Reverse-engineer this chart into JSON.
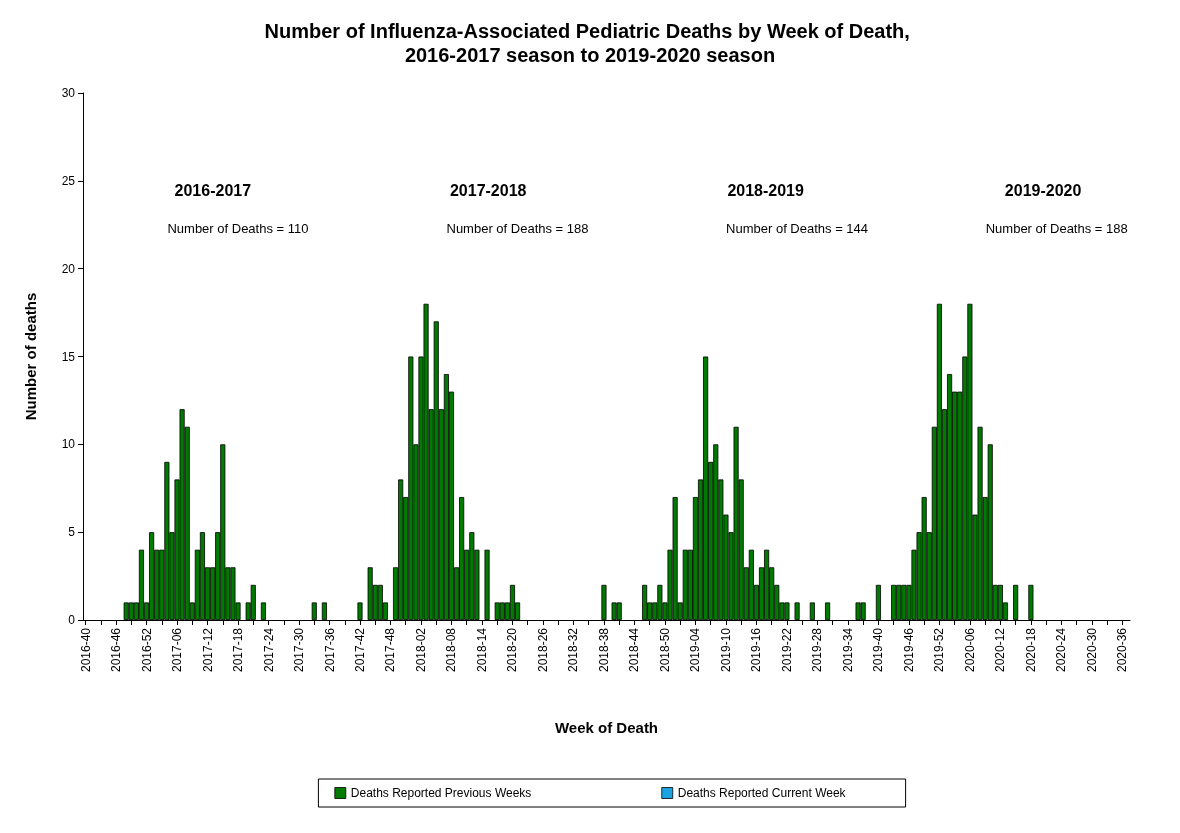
{
  "chart_data": {
    "type": "bar",
    "title": "Number of Influenza-Associated Pediatric Deaths by Week of Death, 2016-2017 season to 2019-2020 season",
    "xlabel": "Week of Death",
    "ylabel": "Number of deaths",
    "categories": [
      "2016-40",
      null,
      null,
      null,
      null,
      null,
      "2016-46",
      null,
      null,
      null,
      null,
      null,
      "2016-52",
      null,
      null,
      null,
      null,
      null,
      "2017-06",
      null,
      null,
      null,
      null,
      null,
      "2017-12",
      null,
      null,
      null,
      null,
      null,
      "2017-18",
      null,
      null,
      null,
      null,
      null,
      "2017-24",
      null,
      null,
      null,
      null,
      null,
      "2017-30",
      null,
      null,
      null,
      null,
      null,
      "2017-36",
      null,
      null,
      null,
      null,
      null,
      "2017-42",
      null,
      null,
      null,
      null,
      null,
      "2017-48",
      null,
      null,
      null,
      null,
      null,
      "2018-02",
      null,
      null,
      null,
      null,
      null,
      "2018-08",
      null,
      null,
      null,
      null,
      null,
      "2018-14",
      null,
      null,
      null,
      null,
      null,
      "2018-20",
      null,
      null,
      null,
      null,
      null,
      "2018-26",
      null,
      null,
      null,
      null,
      null,
      "2018-32",
      null,
      null,
      null,
      null,
      null,
      "2018-38",
      null,
      null,
      null,
      null,
      null,
      "2018-44",
      null,
      null,
      null,
      null,
      null,
      "2018-50",
      null,
      null,
      null,
      null,
      null,
      "2019-04",
      null,
      null,
      null,
      null,
      null,
      "2019-10",
      null,
      null,
      null,
      null,
      null,
      "2019-16",
      null,
      null,
      null,
      null,
      null,
      "2019-22",
      null,
      null,
      null,
      null,
      null,
      "2019-28",
      null,
      null,
      null,
      null,
      null,
      "2019-34",
      null,
      null,
      null,
      null,
      null,
      "2019-40",
      null,
      null,
      null,
      null,
      null,
      "2019-46",
      null,
      null,
      null,
      null,
      null,
      "2019-52",
      null,
      null,
      null,
      null,
      null,
      "2020-06",
      null,
      null,
      null,
      null,
      null,
      "2020-12",
      null,
      null,
      null,
      null,
      null,
      "2020-18",
      null,
      null,
      null,
      null,
      null,
      "2020-24",
      null,
      null,
      null,
      null,
      null,
      "2020-30",
      null,
      null,
      null,
      null,
      null,
      "2020-36",
      null
    ],
    "series": [
      {
        "name": "Deaths Reported Previous Weeks",
        "color": "#007a00",
        "values": [
          0,
          0,
          0,
          0,
          0,
          0,
          0,
          0,
          1,
          1,
          1,
          4,
          1,
          5,
          4,
          4,
          9,
          5,
          8,
          12,
          11,
          1,
          4,
          5,
          3,
          3,
          5,
          10,
          3,
          3,
          1,
          0,
          1,
          2,
          0,
          1,
          0,
          0,
          0,
          0,
          0,
          0,
          0,
          0,
          0,
          1,
          0,
          1,
          0,
          0,
          0,
          0,
          0,
          0,
          1,
          0,
          3,
          2,
          2,
          1,
          0,
          3,
          8,
          7,
          15,
          10,
          15,
          18,
          12,
          17,
          12,
          14,
          13,
          3,
          7,
          4,
          5,
          4,
          0,
          4,
          0,
          1,
          1,
          1,
          2,
          1,
          0,
          0,
          0,
          0,
          0,
          0,
          0,
          0,
          0,
          0,
          0,
          0,
          0,
          0,
          0,
          0,
          2,
          0,
          1,
          1,
          0,
          0,
          0,
          0,
          2,
          1,
          1,
          2,
          1,
          4,
          7,
          1,
          4,
          4,
          7,
          8,
          15,
          9,
          10,
          8,
          6,
          5,
          11,
          8,
          3,
          4,
          2,
          3,
          4,
          3,
          2,
          1,
          1,
          0,
          1,
          0,
          0,
          1,
          0,
          0,
          1,
          0,
          0,
          0,
          0,
          0,
          1,
          1,
          0,
          0,
          2,
          0,
          0,
          2,
          2,
          2,
          2,
          4,
          5,
          7,
          5,
          11,
          18,
          12,
          14,
          13,
          13,
          15,
          18,
          6,
          11,
          7,
          10,
          2,
          2,
          1,
          0,
          2,
          0,
          0,
          2,
          0,
          0,
          0,
          0,
          0,
          0,
          0,
          0,
          0,
          0,
          0,
          0,
          0,
          0,
          0,
          0,
          0,
          0,
          0
        ]
      },
      {
        "name": "Deaths Reported Current Week",
        "color": "#1aa3e0",
        "values": [
          0,
          0,
          0,
          0,
          0,
          0,
          0,
          0,
          0,
          0,
          0,
          0,
          0,
          0,
          0,
          0,
          0,
          0,
          0,
          0,
          0,
          0,
          0,
          0,
          0,
          0,
          0,
          0,
          0,
          0,
          0,
          0,
          0,
          0,
          0,
          0,
          0,
          0,
          0,
          0,
          0,
          0,
          0,
          0,
          0,
          0,
          0,
          0,
          0,
          0,
          0,
          0,
          0,
          0,
          0,
          0,
          0,
          0,
          0,
          0,
          0,
          0,
          0,
          0,
          0,
          0,
          0,
          0,
          0,
          0,
          0,
          0,
          0,
          0,
          0,
          0,
          0,
          0,
          0,
          0,
          0,
          0,
          0,
          0,
          0,
          0,
          0,
          0,
          0,
          0,
          0,
          0,
          0,
          0,
          0,
          0,
          0,
          0,
          0,
          0,
          0,
          0,
          0,
          0,
          0,
          0,
          0,
          0,
          0,
          0,
          0,
          0,
          0,
          0,
          0,
          0,
          0,
          0,
          0,
          0,
          0,
          0,
          0,
          0,
          0,
          0,
          0,
          0,
          0,
          0,
          0,
          0,
          0,
          0,
          0,
          0,
          0,
          0,
          0,
          0,
          0,
          0,
          0,
          0,
          0,
          0,
          0,
          0,
          0,
          0,
          0,
          0,
          0,
          0,
          0,
          0,
          0,
          0,
          0,
          0,
          0,
          0,
          0,
          0,
          0,
          0,
          0,
          0,
          0,
          0,
          0,
          0,
          0,
          0,
          0,
          0,
          0,
          0,
          0,
          0,
          0,
          0,
          0,
          0,
          0,
          0,
          0,
          0,
          0,
          0,
          0,
          0,
          0,
          0,
          0,
          0,
          0,
          0,
          0,
          0,
          0,
          0,
          0,
          0,
          0,
          0
        ]
      }
    ],
    "stacked": true,
    "ylim": [
      0,
      30
    ],
    "yticks": [
      0,
      5,
      10,
      15,
      20,
      25,
      30
    ],
    "grid": false,
    "legend": "bottom",
    "annotations": [
      "2016-2017",
      "Number of Deaths = 110",
      "2017-2018",
      "Number of Deaths = 188",
      "2018-2019",
      "Number of Deaths = 144",
      "2019-2020",
      "Number of Deaths = 188"
    ]
  }
}
